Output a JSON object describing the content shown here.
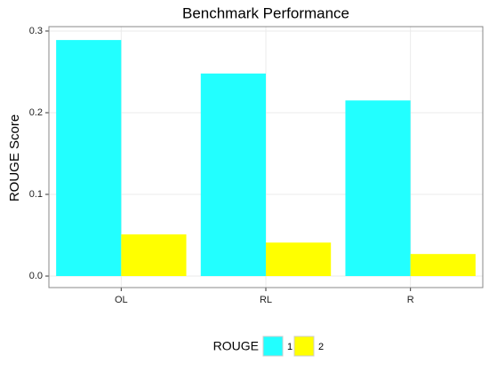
{
  "chart_data": {
    "type": "bar",
    "title": "Benchmark Performance",
    "y_label": "ROUGE Score",
    "categories": [
      "OL",
      "RL",
      "R"
    ],
    "series": [
      {
        "name": "1",
        "color": "#22ffff",
        "values": [
          0.289,
          0.248,
          0.215
        ]
      },
      {
        "name": "2",
        "color": "#ffff00",
        "values": [
          0.051,
          0.041,
          0.027
        ]
      }
    ],
    "ylim": [
      -0.0141,
      0.3054
    ],
    "yticks": [
      {
        "value": 0,
        "label": "0.0"
      },
      0.1,
      0.2,
      0.3
    ],
    "grid": true,
    "legend_title": "ROUGE",
    "legend_position": "bottom"
  }
}
